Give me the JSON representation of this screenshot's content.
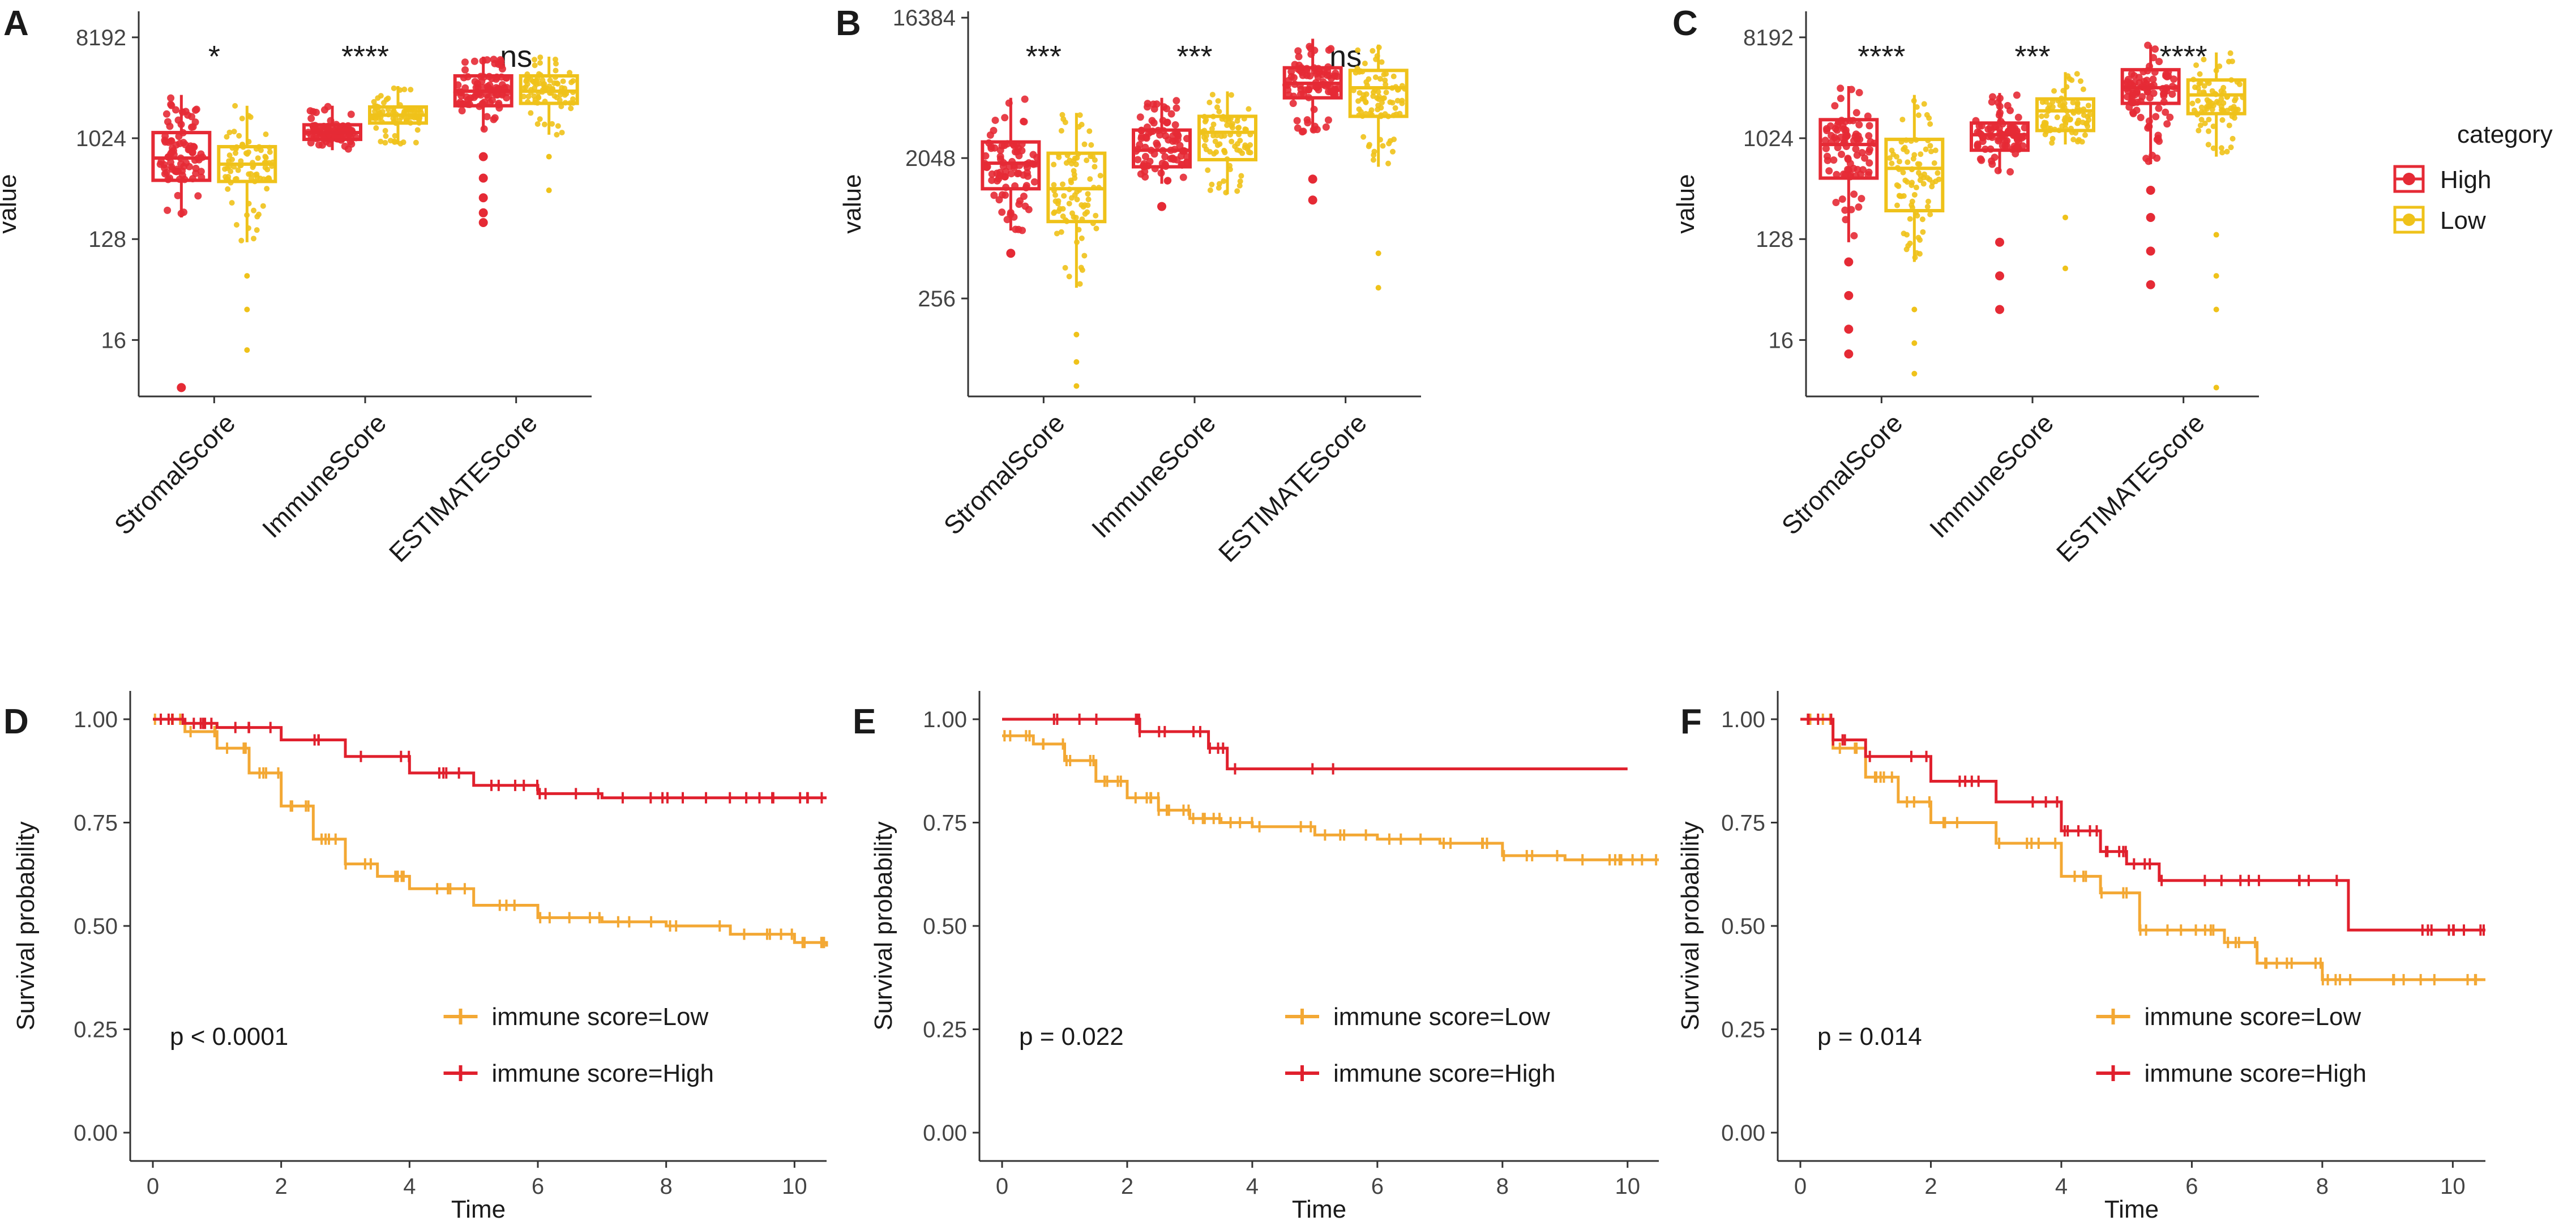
{
  "colors": {
    "high": "#e52a35",
    "low": "#efc21a",
    "km_low": "#f3a834",
    "km_high": "#e0202d",
    "axis": "#333333"
  },
  "chart_data": [
    {
      "panel": "A",
      "type": "boxplot",
      "scale": "log2",
      "ylabel": "value",
      "yticks": [
        16,
        128,
        1024,
        8192
      ],
      "ylim": [
        5,
        14000
      ],
      "categories": [
        "StromalScore",
        "ImmuneScore",
        "ESTIMATEScore"
      ],
      "significance": [
        "*",
        "****",
        "ns"
      ],
      "series": [
        {
          "name": "High",
          "boxes": [
            {
              "min": 200,
              "q1": 430,
              "median": 680,
              "q3": 1150,
              "max": 2500,
              "low_outliers": [
                6
              ]
            },
            {
              "min": 800,
              "q1": 1000,
              "median": 1150,
              "q3": 1350,
              "max": 2000,
              "low_outliers": []
            },
            {
              "min": 1200,
              "q1": 2000,
              "median": 2700,
              "q3": 3700,
              "max": 5500,
              "low_outliers": [
                700,
                450,
                300,
                220,
                180
              ]
            }
          ]
        },
        {
          "name": "Low",
          "boxes": [
            {
              "min": 120,
              "q1": 420,
              "median": 600,
              "q3": 860,
              "max": 2000,
              "low_outliers": [
                60,
                30,
                13
              ]
            },
            {
              "min": 900,
              "q1": 1400,
              "median": 1650,
              "q3": 1950,
              "max": 3000,
              "low_outliers": []
            },
            {
              "min": 1100,
              "q1": 2100,
              "median": 2700,
              "q3": 3700,
              "max": 5500,
              "low_outliers": [
                700,
                350
              ]
            }
          ]
        }
      ]
    },
    {
      "panel": "B",
      "type": "boxplot",
      "scale": "log2",
      "ylabel": "value",
      "yticks": [
        256,
        2048,
        16384
      ],
      "ylim": [
        60,
        18000
      ],
      "categories": [
        "StromalScore",
        "ImmuneScore",
        "ESTIMATEScore"
      ],
      "significance": [
        "***",
        "***",
        "ns"
      ],
      "series": [
        {
          "name": "High",
          "boxes": [
            {
              "min": 700,
              "q1": 1300,
              "median": 1900,
              "q3": 2600,
              "max": 5000,
              "low_outliers": [
                500
              ]
            },
            {
              "min": 1400,
              "q1": 1800,
              "median": 2300,
              "q3": 3100,
              "max": 5000,
              "low_outliers": [
                1000
              ]
            },
            {
              "min": 3000,
              "q1": 5000,
              "median": 6200,
              "q3": 7800,
              "max": 12000,
              "low_outliers": [
                1500,
                1100
              ]
            }
          ]
        },
        {
          "name": "Low",
          "boxes": [
            {
              "min": 300,
              "q1": 800,
              "median": 1300,
              "q3": 2200,
              "max": 4000,
              "low_outliers": [
                150,
                100,
                70
              ]
            },
            {
              "min": 1200,
              "q1": 2000,
              "median": 3000,
              "q3": 3800,
              "max": 5500,
              "low_outliers": []
            },
            {
              "min": 1800,
              "q1": 3800,
              "median": 5800,
              "q3": 7500,
              "max": 11000,
              "low_outliers": [
                500,
                300
              ]
            }
          ]
        }
      ]
    },
    {
      "panel": "C",
      "type": "boxplot",
      "scale": "log2",
      "ylabel": "value",
      "yticks": [
        16,
        128,
        1024,
        8192
      ],
      "ylim": [
        5,
        14000
      ],
      "categories": [
        "StromalScore",
        "ImmuneScore",
        "ESTIMATEScore"
      ],
      "significance": [
        "****",
        "***",
        "****"
      ],
      "series": [
        {
          "name": "High",
          "boxes": [
            {
              "min": 120,
              "q1": 450,
              "median": 900,
              "q3": 1500,
              "max": 3000,
              "low_outliers": [
                80,
                40,
                20,
                12
              ]
            },
            {
              "min": 500,
              "q1": 800,
              "median": 1100,
              "q3": 1400,
              "max": 2600,
              "low_outliers": [
                120,
                60,
                30
              ]
            },
            {
              "min": 600,
              "q1": 2100,
              "median": 2900,
              "q3": 4200,
              "max": 7000,
              "low_outliers": [
                350,
                200,
                100,
                50
              ]
            }
          ]
        },
        {
          "name": "Low",
          "boxes": [
            {
              "min": 80,
              "q1": 230,
              "median": 550,
              "q3": 1000,
              "max": 2500,
              "low_outliers": [
                30,
                15,
                8
              ]
            },
            {
              "min": 900,
              "q1": 1200,
              "median": 1800,
              "q3": 2300,
              "max": 4000,
              "low_outliers": [
                200,
                70
              ]
            },
            {
              "min": 700,
              "q1": 1700,
              "median": 2500,
              "q3": 3400,
              "max": 6000,
              "low_outliers": [
                140,
                60,
                30,
                6
              ]
            }
          ]
        }
      ],
      "legend": {
        "title": "category",
        "entries": [
          "High",
          "Low"
        ]
      }
    },
    {
      "panel": "D",
      "type": "line",
      "subtype": "kaplan-meier",
      "xlabel": "Time",
      "ylabel": "Survival probability",
      "xticks": [
        0,
        2,
        4,
        6,
        8,
        10
      ],
      "yticks": [
        "0.00",
        "0.25",
        "0.50",
        "0.75",
        "1.00"
      ],
      "xlim": [
        0,
        10.5
      ],
      "ylim": [
        0,
        1
      ],
      "pvalue": "p < 0.0001",
      "legend": [
        "immune score=Low",
        "immune score=High"
      ],
      "series": [
        {
          "name": "immune score=Low",
          "x": [
            0,
            0.5,
            1,
            1.5,
            2,
            2.5,
            3,
            3.5,
            4,
            5,
            6,
            7,
            8,
            9,
            10,
            10.5
          ],
          "y": [
            1.0,
            0.97,
            0.93,
            0.87,
            0.79,
            0.71,
            0.65,
            0.62,
            0.59,
            0.55,
            0.52,
            0.51,
            0.5,
            0.48,
            0.46,
            0.45
          ]
        },
        {
          "name": "immune score=High",
          "x": [
            0,
            0.5,
            1,
            2,
            3,
            4,
            5,
            6,
            7,
            8,
            9,
            10,
            10.5
          ],
          "y": [
            1.0,
            0.99,
            0.98,
            0.95,
            0.91,
            0.87,
            0.84,
            0.82,
            0.81,
            0.81,
            0.81,
            0.81,
            0.81
          ]
        }
      ]
    },
    {
      "panel": "E",
      "type": "line",
      "subtype": "kaplan-meier",
      "xlabel": "Time",
      "ylabel": "Survival probability",
      "xticks": [
        0,
        2,
        4,
        6,
        8,
        10
      ],
      "yticks": [
        "0.00",
        "0.25",
        "0.50",
        "0.75",
        "1.00"
      ],
      "xlim": [
        0,
        10.5
      ],
      "ylim": [
        0,
        1
      ],
      "pvalue": "p = 0.022",
      "legend": [
        "immune score=Low",
        "immune score=High"
      ],
      "series": [
        {
          "name": "immune score=Low",
          "x": [
            0,
            0.5,
            1,
            1.5,
            2,
            2.5,
            3,
            3.5,
            4,
            5,
            6,
            7,
            8,
            9,
            10,
            10.5
          ],
          "y": [
            0.96,
            0.94,
            0.9,
            0.85,
            0.81,
            0.78,
            0.76,
            0.75,
            0.74,
            0.72,
            0.71,
            0.7,
            0.67,
            0.66,
            0.66,
            0.66
          ]
        },
        {
          "name": "immune score=High",
          "x": [
            0,
            2.1,
            2.2,
            3.3,
            3.6,
            10
          ],
          "y": [
            1.0,
            1.0,
            0.97,
            0.93,
            0.88,
            0.88
          ]
        }
      ]
    },
    {
      "panel": "F",
      "type": "line",
      "subtype": "kaplan-meier",
      "xlabel": "Time",
      "ylabel": "Survival probability",
      "xticks": [
        0,
        2,
        4,
        6,
        8,
        10
      ],
      "yticks": [
        "0.00",
        "0.25",
        "0.50",
        "0.75",
        "1.00"
      ],
      "xlim": [
        0,
        10.5
      ],
      "ylim": [
        0,
        1
      ],
      "pvalue": "p = 0.014",
      "legend": [
        "immune score=Low",
        "immune score=High"
      ],
      "series": [
        {
          "name": "immune score=Low",
          "x": [
            0,
            0.5,
            1,
            1.5,
            2,
            3,
            4,
            4.6,
            5.2,
            6,
            6.5,
            7,
            7.5,
            8,
            9,
            10,
            10.5
          ],
          "y": [
            1.0,
            0.93,
            0.86,
            0.8,
            0.75,
            0.7,
            0.62,
            0.58,
            0.49,
            0.49,
            0.46,
            0.41,
            0.41,
            0.37,
            0.37,
            0.37,
            0.37
          ]
        },
        {
          "name": "immune score=High",
          "x": [
            0,
            0.5,
            1,
            2,
            3,
            4,
            4.6,
            5,
            5.5,
            7,
            8.4,
            10,
            10.5
          ],
          "y": [
            1.0,
            0.95,
            0.91,
            0.85,
            0.8,
            0.73,
            0.68,
            0.65,
            0.61,
            0.61,
            0.49,
            0.49,
            0.49
          ]
        }
      ]
    }
  ]
}
